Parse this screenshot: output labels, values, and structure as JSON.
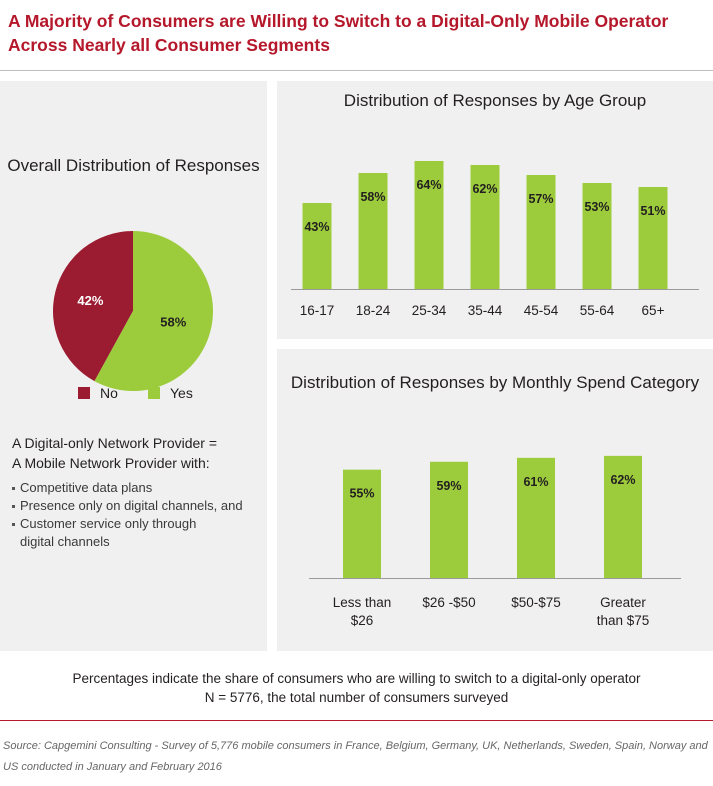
{
  "title": "A Majority of Consumers are Willing to Switch to a Digital-Only Mobile Operator Across Nearly all Consumer Segments",
  "colors": {
    "no": "#9b1b30",
    "yes": "#9ccc3c",
    "title": "#b5172b",
    "panel": "#f0f0f0"
  },
  "definition": {
    "heading_line1": "A Digital-only Network Provider =",
    "heading_line2": "A Mobile Network Provider with:",
    "items": [
      "Competitive data plans",
      "Presence only on digital channels, and",
      "Customer service only through digital channels"
    ]
  },
  "footnote": {
    "line1": "Percentages indicate the share of consumers who are willing to switch to a digital-only operator",
    "line2": "N = 5776, the total number of consumers surveyed"
  },
  "source": "Source: Capgemini Consulting - Survey of 5,776 mobile consumers in France, Belgium, Germany, UK, Netherlands, Sweden, Spain, Norway and US conducted in January and February 2016",
  "chart_data": [
    {
      "type": "pie",
      "title": "Overall Distribution of Responses",
      "labels": [
        "No",
        "Yes"
      ],
      "values": [
        42,
        58
      ],
      "value_labels": [
        "42%",
        "58%"
      ],
      "legend": [
        "No",
        "Yes"
      ],
      "legend_position": "bottom"
    },
    {
      "type": "bar",
      "title": "Distribution of Responses by Age Group",
      "categories": [
        "16-17",
        "18-24",
        "25-34",
        "35-44",
        "45-54",
        "55-64",
        "65+"
      ],
      "values": [
        43,
        58,
        64,
        62,
        57,
        53,
        51
      ],
      "value_labels": [
        "43%",
        "58%",
        "64%",
        "62%",
        "57%",
        "53%",
        "51%"
      ],
      "ylim": [
        0,
        100
      ],
      "grid": false
    },
    {
      "type": "bar",
      "title": "Distribution of Responses by Monthly Spend Category",
      "categories": [
        "Less than $26",
        "$26 -$50",
        "$50-$75",
        "Greater than $75"
      ],
      "values": [
        55,
        59,
        61,
        62
      ],
      "value_labels": [
        "55%",
        "59%",
        "61%",
        "62%"
      ],
      "ylim": [
        0,
        100
      ],
      "grid": false
    }
  ]
}
